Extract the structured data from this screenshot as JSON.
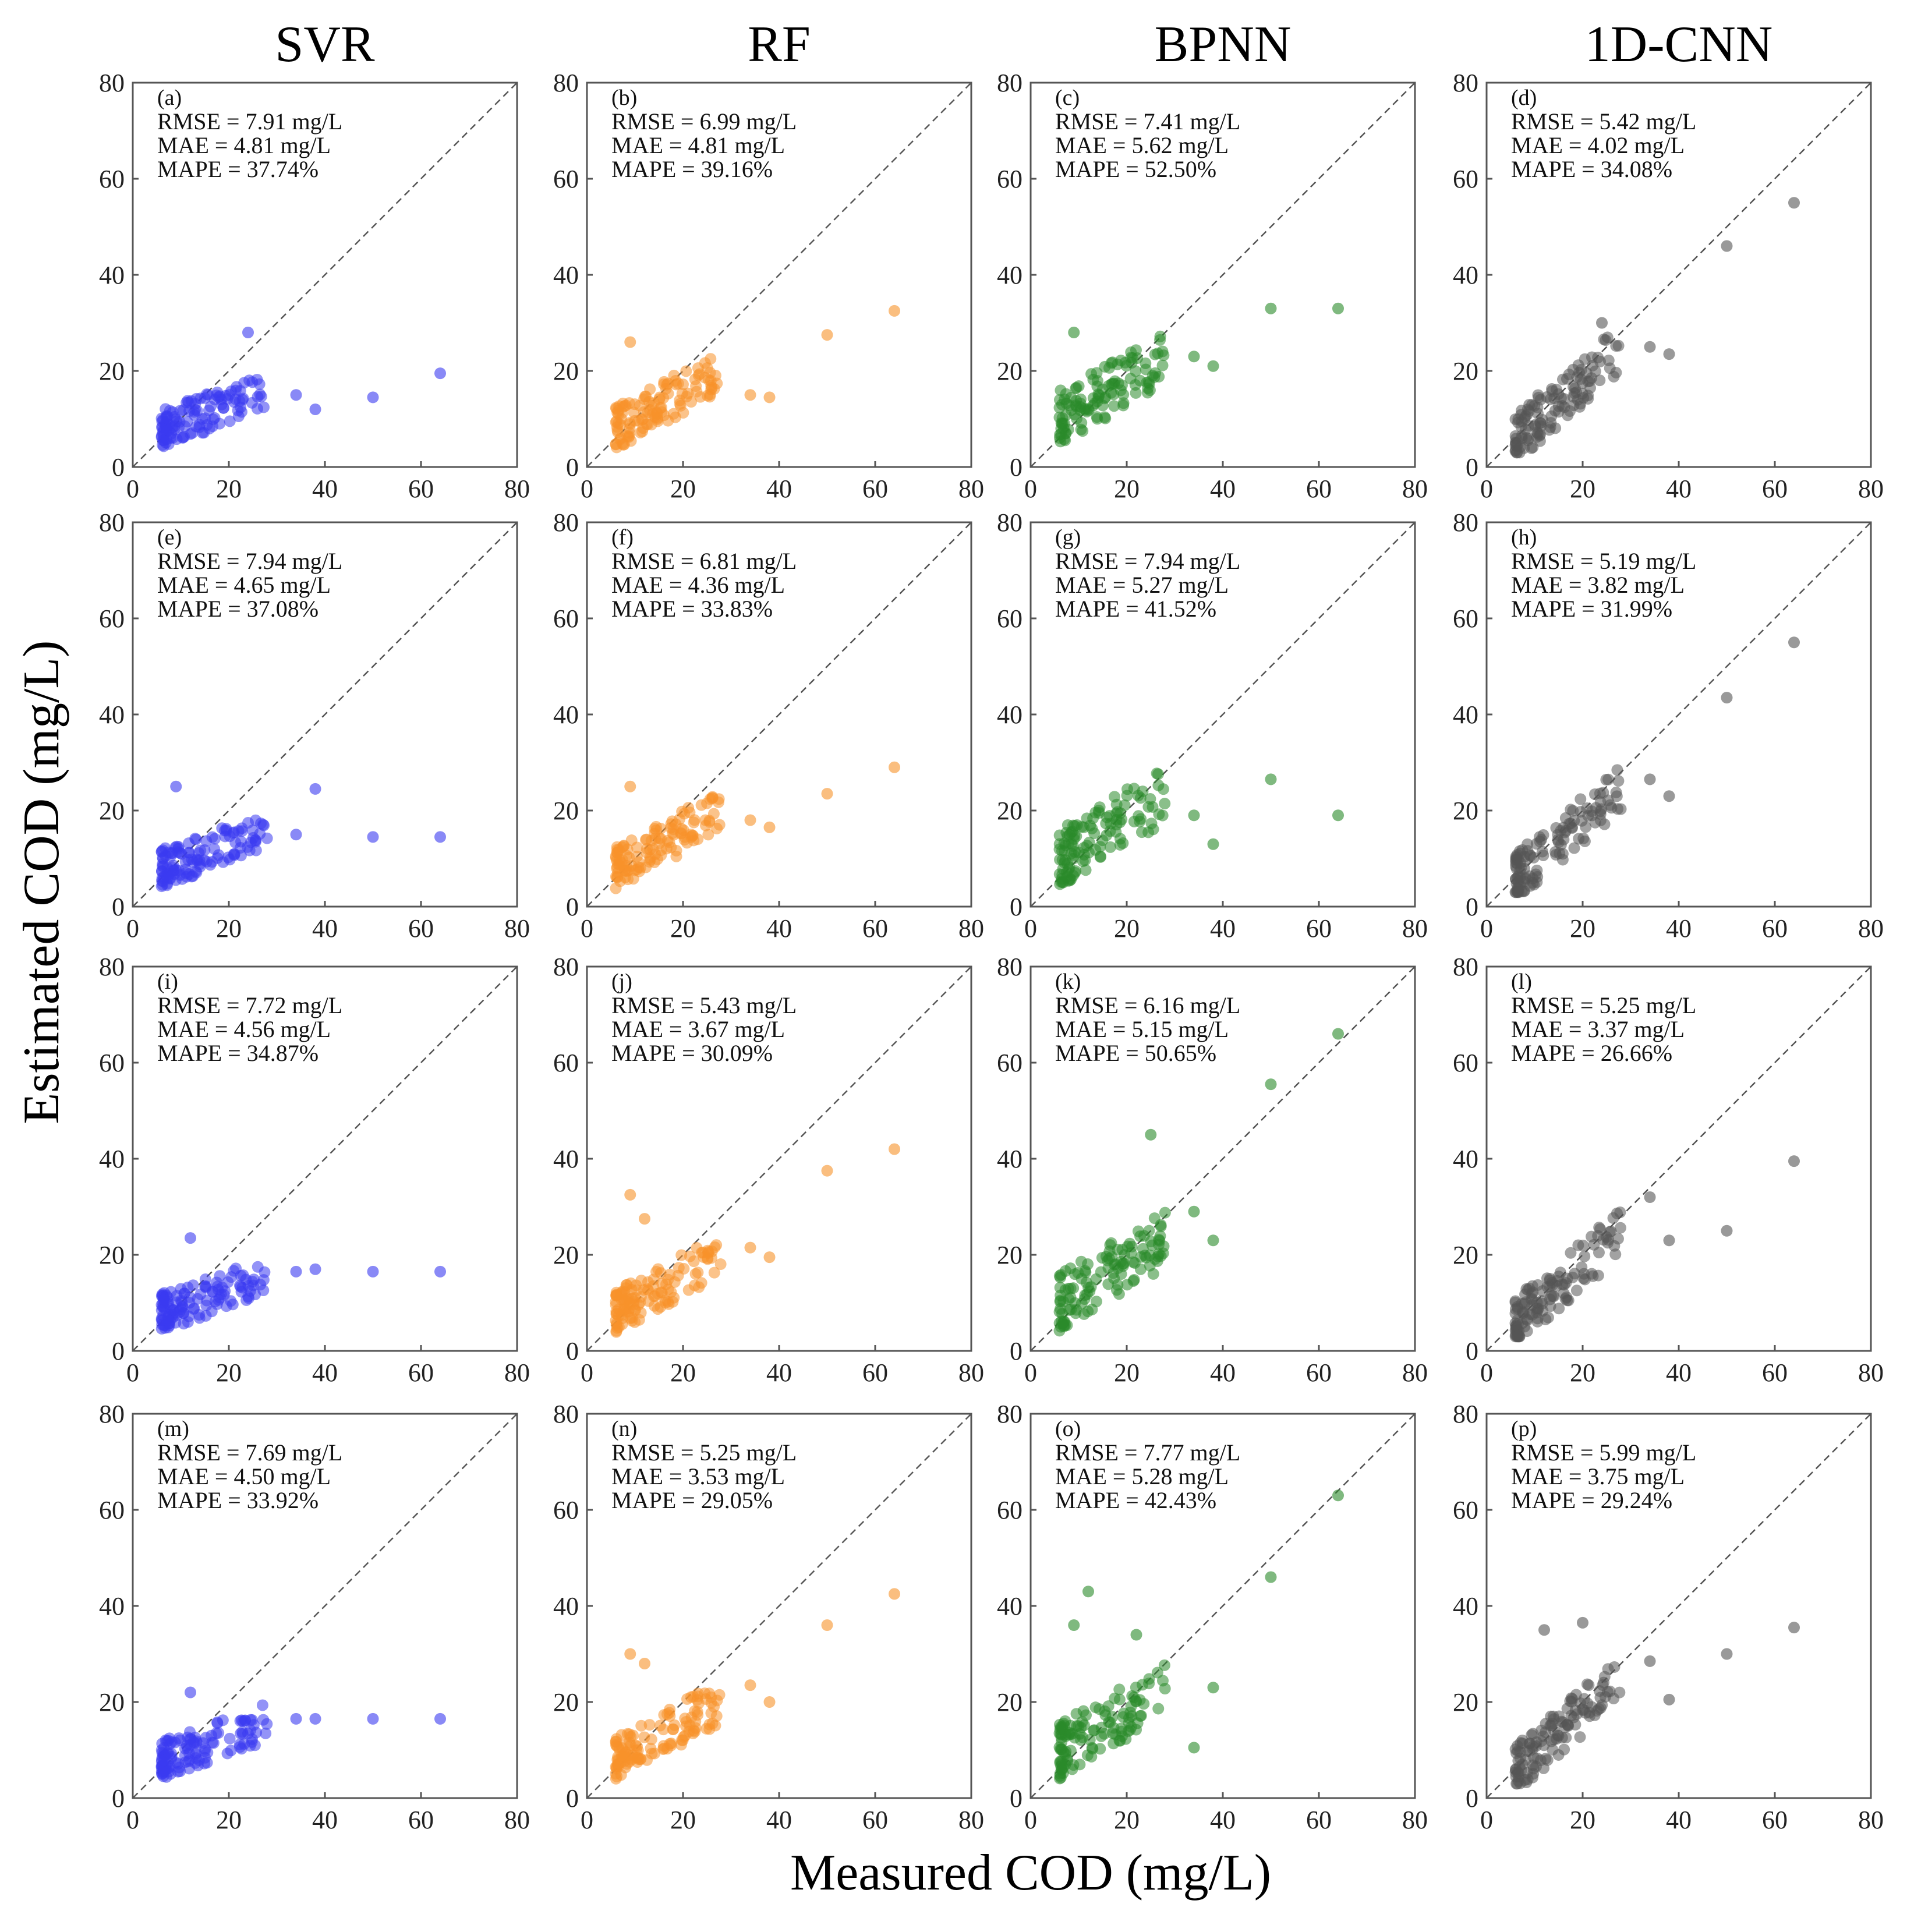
{
  "chart_data": {
    "type": "scatter",
    "column_titles": [
      "SVR",
      "RF",
      "BPNN",
      "1D-CNN"
    ],
    "xlabel": "Measured COD (mg/L)",
    "ylabel": "Estimated COD (mg/L)",
    "xlim": [
      0,
      80
    ],
    "ylim": [
      0,
      80
    ],
    "ticks": [
      0,
      20,
      40,
      60,
      80
    ],
    "tick_labels": [
      "0",
      "20",
      "40",
      "60",
      "80"
    ],
    "colors": {
      "SVR": "#3a3af0",
      "RF": "#f7922a",
      "BPNN": "#2a8a2a",
      "1D-CNN": "#555555"
    },
    "reference_line": "y = x (dashed)",
    "panels": [
      {
        "label": "(a)",
        "model": "SVR",
        "rmse": "RMSE = 7.91 mg/L",
        "mae": "MAE = 4.81 mg/L",
        "mape": "MAPE = 37.74%",
        "outliers": [
          [
            24,
            28
          ],
          [
            34,
            15
          ],
          [
            38,
            12
          ],
          [
            50,
            14.5
          ],
          [
            64,
            19.5
          ]
        ]
      },
      {
        "label": "(b)",
        "model": "RF",
        "rmse": "RMSE = 6.99 mg/L",
        "mae": "MAE = 4.81 mg/L",
        "mape": "MAPE = 39.16%",
        "outliers": [
          [
            9,
            26
          ],
          [
            34,
            15
          ],
          [
            38,
            14.5
          ],
          [
            50,
            27.5
          ],
          [
            64,
            32.5
          ]
        ]
      },
      {
        "label": "(c)",
        "model": "BPNN",
        "rmse": "RMSE = 7.41 mg/L",
        "mae": "MAE = 5.62 mg/L",
        "mape": "MAPE = 52.50%",
        "outliers": [
          [
            9,
            28
          ],
          [
            34,
            23
          ],
          [
            38,
            21
          ],
          [
            50,
            33
          ],
          [
            64,
            33
          ]
        ]
      },
      {
        "label": "(d)",
        "model": "1D-CNN",
        "rmse": "RMSE = 5.42 mg/L",
        "mae": "MAE = 4.02 mg/L",
        "mape": "MAPE = 34.08%",
        "outliers": [
          [
            24,
            30
          ],
          [
            34,
            25
          ],
          [
            38,
            23.5
          ],
          [
            50,
            46
          ],
          [
            64,
            55
          ]
        ]
      },
      {
        "label": "(e)",
        "model": "SVR",
        "rmse": "RMSE = 7.94 mg/L",
        "mae": "MAE = 4.65 mg/L",
        "mape": "MAPE = 37.08%",
        "outliers": [
          [
            9,
            25
          ],
          [
            34,
            15
          ],
          [
            38,
            24.5
          ],
          [
            50,
            14.5
          ],
          [
            64,
            14.5
          ]
        ]
      },
      {
        "label": "(f)",
        "model": "RF",
        "rmse": "RMSE = 6.81 mg/L",
        "mae": "MAE = 4.36 mg/L",
        "mape": "MAPE = 33.83%",
        "outliers": [
          [
            9,
            25
          ],
          [
            34,
            18
          ],
          [
            38,
            16.5
          ],
          [
            50,
            23.5
          ],
          [
            64,
            29
          ]
        ]
      },
      {
        "label": "(g)",
        "model": "BPNN",
        "rmse": "RMSE = 7.94 mg/L",
        "mae": "MAE = 5.27 mg/L",
        "mape": "MAPE = 41.52%",
        "outliers": [
          [
            34,
            19
          ],
          [
            38,
            13
          ],
          [
            50,
            26.5
          ],
          [
            64,
            19
          ]
        ]
      },
      {
        "label": "(h)",
        "model": "1D-CNN",
        "rmse": "RMSE = 5.19 mg/L",
        "mae": "MAE = 3.82 mg/L",
        "mape": "MAPE = 31.99%",
        "outliers": [
          [
            34,
            26.5
          ],
          [
            38,
            23
          ],
          [
            50,
            43.5
          ],
          [
            64,
            55
          ]
        ]
      },
      {
        "label": "(i)",
        "model": "SVR",
        "rmse": "RMSE = 7.72 mg/L",
        "mae": "MAE = 4.56 mg/L",
        "mape": "MAPE = 34.87%",
        "outliers": [
          [
            12,
            23.5
          ],
          [
            34,
            16.5
          ],
          [
            38,
            17
          ],
          [
            50,
            16.5
          ],
          [
            64,
            16.5
          ]
        ]
      },
      {
        "label": "(j)",
        "model": "RF",
        "rmse": "RMSE = 5.43 mg/L",
        "mae": "MAE = 3.67 mg/L",
        "mape": "MAPE = 30.09%",
        "outliers": [
          [
            9,
            32.5
          ],
          [
            12,
            27.5
          ],
          [
            34,
            21.5
          ],
          [
            38,
            19.5
          ],
          [
            50,
            37.5
          ],
          [
            64,
            42
          ]
        ]
      },
      {
        "label": "(k)",
        "model": "BPNN",
        "rmse": "RMSE = 6.16 mg/L",
        "mae": "MAE = 5.15 mg/L",
        "mape": "MAPE = 50.65%",
        "outliers": [
          [
            25,
            45
          ],
          [
            34,
            29
          ],
          [
            38,
            23
          ],
          [
            50,
            55.5
          ],
          [
            64,
            66
          ]
        ]
      },
      {
        "label": "(l)",
        "model": "1D-CNN",
        "rmse": "RMSE = 5.25 mg/L",
        "mae": "MAE = 3.37 mg/L",
        "mape": "MAPE = 26.66%",
        "outliers": [
          [
            34,
            32
          ],
          [
            38,
            23
          ],
          [
            50,
            25
          ],
          [
            64,
            39.5
          ]
        ]
      },
      {
        "label": "(m)",
        "model": "SVR",
        "rmse": "RMSE = 7.69 mg/L",
        "mae": "MAE = 4.50 mg/L",
        "mape": "MAPE = 33.92%",
        "outliers": [
          [
            12,
            22
          ],
          [
            34,
            16.5
          ],
          [
            38,
            16.5
          ],
          [
            50,
            16.5
          ],
          [
            64,
            16.5
          ]
        ]
      },
      {
        "label": "(n)",
        "model": "RF",
        "rmse": "RMSE = 5.25 mg/L",
        "mae": "MAE = 3.53 mg/L",
        "mape": "MAPE = 29.05%",
        "outliers": [
          [
            9,
            30
          ],
          [
            12,
            28
          ],
          [
            34,
            23.5
          ],
          [
            38,
            20
          ],
          [
            50,
            36
          ],
          [
            64,
            42.5
          ]
        ]
      },
      {
        "label": "(o)",
        "model": "BPNN",
        "rmse": "RMSE = 7.77 mg/L",
        "mae": "MAE = 5.28 mg/L",
        "mape": "MAPE = 42.43%",
        "outliers": [
          [
            9,
            36
          ],
          [
            12,
            43
          ],
          [
            22,
            34
          ],
          [
            34,
            10.5
          ],
          [
            38,
            23
          ],
          [
            50,
            46
          ],
          [
            64,
            63
          ]
        ]
      },
      {
        "label": "(p)",
        "model": "1D-CNN",
        "rmse": "RMSE = 5.99 mg/L",
        "mae": "MAE = 3.75 mg/L",
        "mape": "MAPE = 29.24%",
        "outliers": [
          [
            12,
            35
          ],
          [
            20,
            36.5
          ],
          [
            34,
            28.5
          ],
          [
            38,
            20.5
          ],
          [
            50,
            30
          ],
          [
            64,
            35.5
          ]
        ]
      }
    ]
  }
}
